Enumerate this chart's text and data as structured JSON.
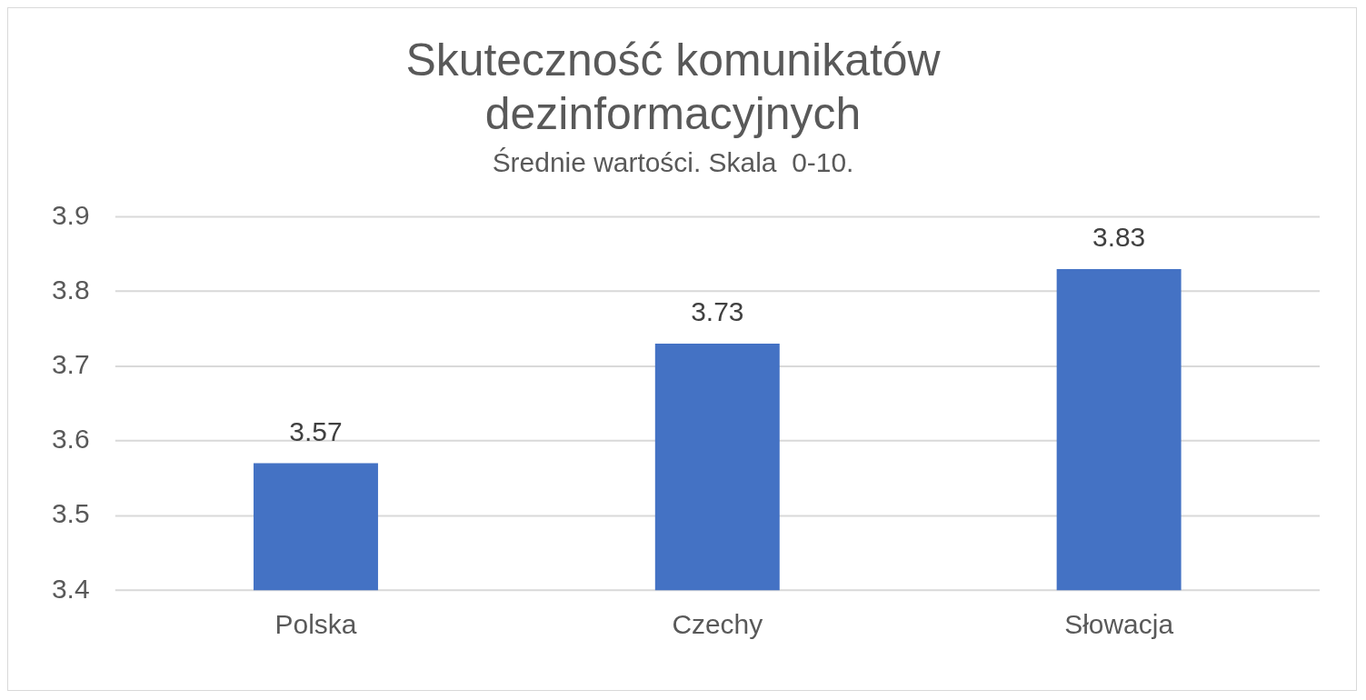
{
  "chart_data": {
    "type": "bar",
    "title": "Skuteczność komunikatów dezinformacyjnych",
    "subtitle": "Średnie wartości. Skala  0-10.",
    "categories": [
      "Polska",
      "Czechy",
      "Słowacja"
    ],
    "values": [
      3.57,
      3.73,
      3.83
    ],
    "color": "#4472c4",
    "ylim": [
      3.4,
      3.9
    ],
    "yticks": [
      3.4,
      3.5,
      3.6,
      3.7,
      3.8,
      3.9
    ],
    "grid": "y",
    "legend": false,
    "data_labels": true
  }
}
